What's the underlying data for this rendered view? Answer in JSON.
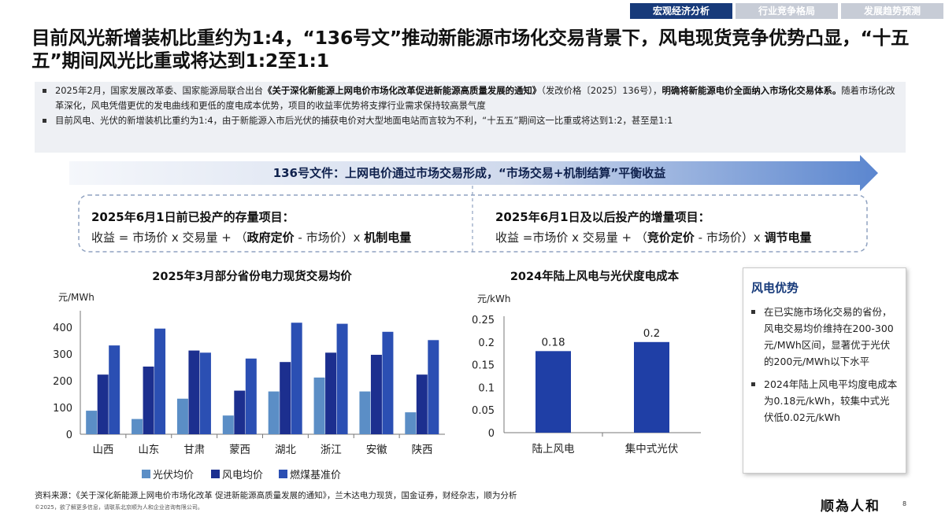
{
  "tabs": [
    "宏观经济分析",
    "行业竞争格局",
    "发展趋势预测"
  ],
  "title": "目前风光新增装机比重约为1:4，“136号文”推动新能源市场化交易背景下，风电现货竞争优势凸显，“十五五”期间风光比重或将达到1:2至1:1",
  "bullets": {
    "b1_pre": "2025年2月，国家发展改革委、国家能源局联合出台",
    "b1_doc": "《关于深化新能源上网电价市场化改革促进新能源高质量发展的通知》",
    "b1_mid": "（发改价格〔2025〕136号），",
    "b1_bold": "明确将新能源电价全面纳入市场化交易体系。",
    "b1_post": "随着市场化改革深化，风电凭借更优的发电曲线和更低的度电成本优势，项目的收益率优势将支撑行业需求保持较高景气度",
    "b2": "目前风电、光伏的新增装机比重约为1:4，由于新能源入市后光伏的捕获电价对大型地面电站而言较为不利，“十五五”期间这一比重或将达到1:2，甚至是1:1"
  },
  "arrow_text": "136号文件：上网电价通过市场交易形成，“市场交易+机制结算”平衡收益",
  "formulas": {
    "left_title": "2025年6月1日前已投产的存量项目：",
    "left_pre": "收益 = 市场价 x 交易量 + （",
    "left_b1": "政府定价",
    "left_mid": " - 市场价）x ",
    "left_b2": "机制电量",
    "right_title": "2025年6月1日及以后投产的增量项目：",
    "right_pre": "收益 =市场价 x 交易量 + （",
    "right_b1": "竞价定价",
    "right_mid": " - 市场价）x ",
    "right_b2": "调节电量"
  },
  "chart_data": [
    {
      "type": "bar",
      "title": "2025年3月部分省份电力现货交易均价",
      "ylabel": "元/MWh",
      "ylim": [
        0,
        450
      ],
      "yticks": [
        0,
        100,
        200,
        300,
        400
      ],
      "categories": [
        "山西",
        "山东",
        "甘肃",
        "蒙西",
        "湖北",
        "浙江",
        "安徽",
        "陕西"
      ],
      "series": [
        {
          "name": "光伏均价",
          "color": "#5b8ec6",
          "values": [
            88,
            57,
            133,
            70,
            160,
            212,
            160,
            82
          ]
        },
        {
          "name": "风电均价",
          "color": "#1c2f8f",
          "values": [
            223,
            253,
            313,
            163,
            270,
            305,
            297,
            223
          ]
        },
        {
          "name": "燃煤基准价",
          "color": "#2b4fb3",
          "values": [
            332,
            395,
            305,
            283,
            417,
            413,
            383,
            352
          ]
        }
      ],
      "legend": "bottom"
    },
    {
      "type": "bar",
      "title": "2024年陆上风电与光伏度电成本",
      "ylabel": "元/kWh",
      "ylim": [
        0,
        0.25
      ],
      "yticks": [
        "0",
        "0.05",
        "0.1",
        "0.15",
        "0.2",
        "0.25"
      ],
      "categories": [
        "陆上风电",
        "集中式光伏"
      ],
      "values": [
        0.18,
        0.2
      ],
      "value_labels": [
        "0.18",
        "0.2"
      ],
      "color": "#1f3fa6"
    }
  ],
  "side": {
    "title": "风电优势",
    "p1": "在已实施市场化交易的省份，风电交易均价维持在200-300元/MWh区间，显著优于光伏的200元/MWh以下水平",
    "p2": "2024年陆上风电平均度电成本为0.18元/kWh，较集中式光伏低0.02元/kWh"
  },
  "source": "资料来源：《关于深化新能源上网电价市场化改革 促进新能源高质量发展的通知》，兰木达电力现货，国金证券，财经杂志，顺为分析",
  "copyright": "©2025，欲了解更多信息，请联系北京顺为人和企业咨询有限公司。",
  "brand": "顺為人和",
  "page_number": "8"
}
